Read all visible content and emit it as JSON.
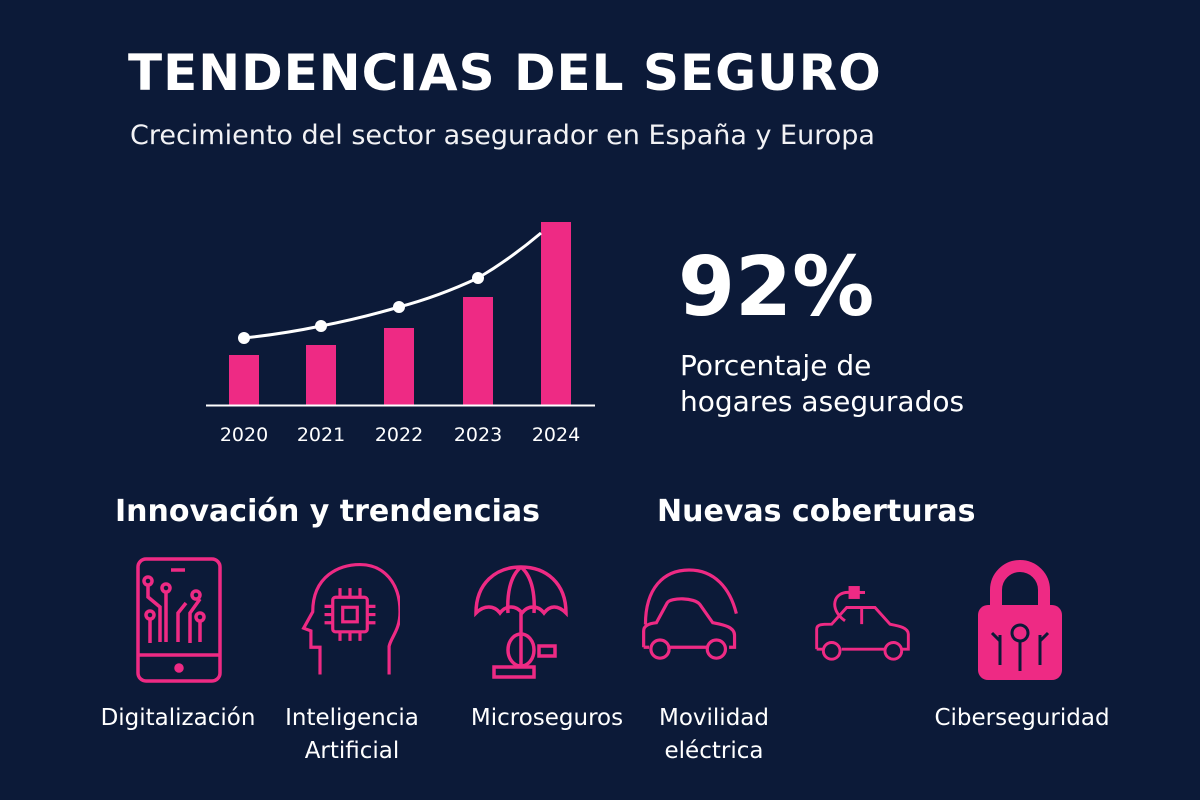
{
  "header": {
    "title": "TENDENCIAS DEL SEGURO",
    "subtitle": "Crecimiento del sector asegurador en España y Europa"
  },
  "colors": {
    "background": "#0c1a38",
    "accent": "#ee2a84",
    "text": "#ffffff"
  },
  "chart_data": {
    "type": "bar",
    "categories": [
      "2020",
      "2021",
      "2022",
      "2023",
      "2024"
    ],
    "series": [
      {
        "type": "bar",
        "values": [
          50,
          60,
          77,
          108,
          183
        ]
      },
      {
        "type": "line",
        "values": [
          67,
          79,
          98,
          127,
          172
        ]
      }
    ],
    "title": "",
    "xlabel": "",
    "ylabel": "",
    "ylim": [
      0,
      185
    ],
    "y_axis_shown": false,
    "grid": false,
    "note_units": "relative, no scale printed"
  },
  "stat": {
    "value": "92%",
    "label_line1": "Porcentaje de",
    "label_line2": "hogares asegurados"
  },
  "sections": {
    "innovation": "Innovación y trendencias",
    "coverages": "Nuevas coberturas"
  },
  "items": [
    {
      "icon": "smartphone-circuit-icon",
      "label1": "Digitalización",
      "label2": ""
    },
    {
      "icon": "head-chip-icon",
      "label1": "Inteligencia",
      "label2": "Artificial"
    },
    {
      "icon": "umbrella-icon",
      "label1": "Microseguros",
      "label2": ""
    },
    {
      "icon": "car-icon",
      "label1": "Movilidad",
      "label2": "eléctrica"
    },
    {
      "icon": "electric-car-icon",
      "label1": "",
      "": ""
    },
    {
      "icon": "padlock-circuit-icon",
      "label1": "Ciberseguridad",
      "label2": ""
    }
  ]
}
